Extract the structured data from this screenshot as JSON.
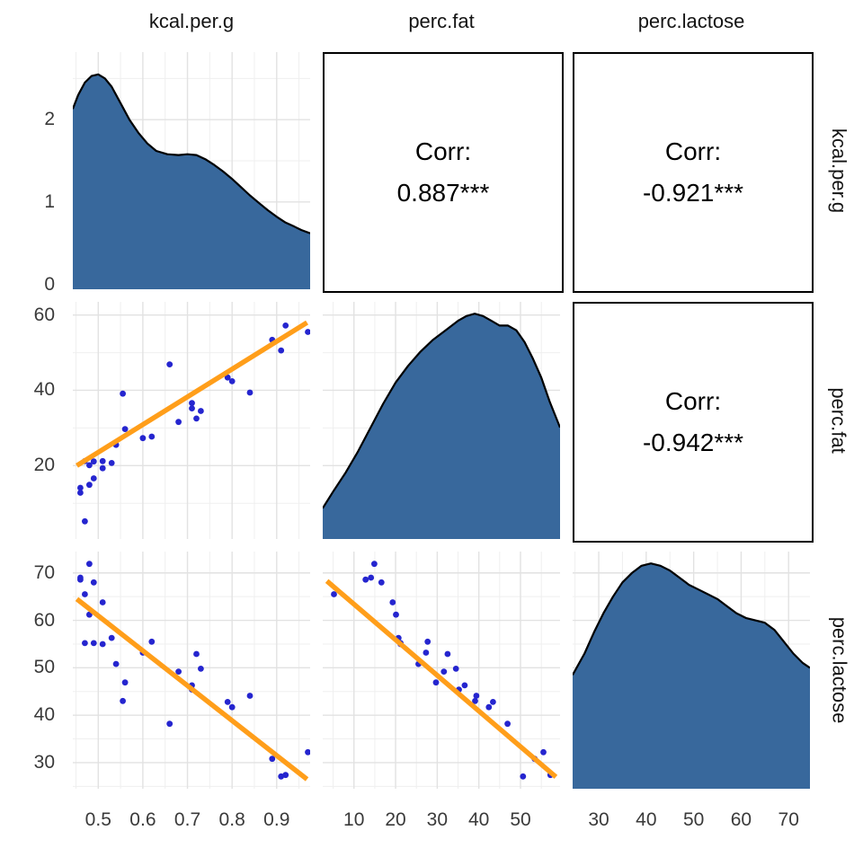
{
  "figure": {
    "kind": "ggpairs scatterplot matrix",
    "background": "#ffffff"
  },
  "style": {
    "density_fill": "#38689c",
    "density_stroke": "#000000",
    "point_color": "#2525cf",
    "regression_color": "#ff9e1a",
    "grid_major": "#e2e2e2",
    "grid_minor": "#efefef",
    "panel_border": "#000000",
    "tick_color": "#3a3a3a",
    "label_color": "#141414"
  },
  "chart_data": {
    "type": "scatter",
    "subtype": "pairs-matrix",
    "title": "",
    "variables": [
      "kcal.per.g",
      "perc.fat",
      "perc.lactose"
    ],
    "corr": {
      "c01": {
        "label": "Corr:",
        "value": "0.887***"
      },
      "c02": {
        "label": "Corr:",
        "value": "-0.921***"
      },
      "c12": {
        "label": "Corr:",
        "value": "-0.942***"
      }
    },
    "x_axes": [
      {
        "var": "kcal.per.g",
        "range": [
          0.443,
          0.975
        ],
        "ticks": [
          0.5,
          0.6,
          0.7,
          0.8,
          0.9
        ],
        "minor": [
          0.45,
          0.55,
          0.65,
          0.75,
          0.85,
          0.95
        ]
      },
      {
        "var": "perc.fat",
        "range": [
          2.5,
          59.5
        ],
        "ticks": [
          10,
          20,
          30,
          40,
          50
        ],
        "minor": [
          5,
          15,
          25,
          35,
          45,
          55
        ]
      },
      {
        "var": "perc.lactose",
        "range": [
          24.5,
          74.5
        ],
        "ticks": [
          30,
          40,
          50,
          60,
          70
        ],
        "minor": [
          25,
          35,
          45,
          55,
          65
        ]
      }
    ],
    "y_axes": [
      {
        "var": "density",
        "range": [
          -0.06,
          2.82
        ],
        "ticks": [
          0,
          1,
          2
        ],
        "minor": [
          0.5,
          1.5,
          2.5
        ]
      },
      {
        "var": "perc.fat",
        "range": [
          0.5,
          63.5
        ],
        "ticks": [
          20,
          40,
          60
        ],
        "minor": [
          10,
          30,
          50
        ]
      },
      {
        "var": "perc.lactose",
        "range": [
          24.5,
          74.5
        ],
        "ticks": [
          30,
          40,
          50,
          60,
          70
        ],
        "minor": [
          25,
          35,
          45,
          55,
          65
        ]
      }
    ],
    "observations": [
      [
        0.49,
        16.6,
        68.0
      ],
      [
        0.51,
        19.3,
        63.8
      ],
      [
        0.46,
        14.1,
        69.0
      ],
      [
        0.48,
        14.9,
        71.9
      ],
      [
        0.6,
        27.3,
        53.2
      ],
      [
        0.47,
        21.2,
        55.2
      ],
      [
        0.56,
        29.7,
        46.9
      ],
      [
        0.89,
        53.4,
        30.8
      ],
      [
        0.91,
        50.6,
        27.1
      ],
      [
        0.92,
        57.2,
        27.4
      ],
      [
        0.8,
        42.4,
        41.7
      ],
      [
        0.46,
        12.8,
        68.6
      ],
      [
        0.71,
        36.6,
        46.3
      ],
      [
        0.71,
        35.2,
        45.4
      ],
      [
        0.73,
        34.5,
        49.8
      ],
      [
        0.68,
        31.6,
        49.2
      ],
      [
        0.72,
        32.5,
        52.9
      ],
      [
        0.97,
        55.5,
        32.2
      ],
      [
        0.79,
        43.4,
        42.8
      ],
      [
        0.84,
        39.4,
        44.1
      ],
      [
        0.48,
        20.1,
        61.2
      ],
      [
        0.62,
        27.7,
        55.5
      ],
      [
        0.51,
        21.2,
        55.0
      ],
      [
        0.54,
        25.5,
        50.8
      ],
      [
        0.49,
        21.1,
        55.2
      ],
      [
        0.53,
        20.7,
        56.3
      ],
      [
        0.47,
        5.2,
        65.5
      ],
      [
        0.555,
        39.1,
        43.0
      ],
      [
        0.66,
        46.9,
        38.2
      ]
    ],
    "regressions": {
      "kcal_fat": [
        [
          0.452,
          20.0
        ],
        [
          0.968,
          58.0
        ]
      ],
      "kcal_lactose": [
        [
          0.452,
          64.5
        ],
        [
          0.968,
          26.5
        ]
      ],
      "fat_lactose": [
        [
          3.5,
          68.3
        ],
        [
          58.5,
          27.0
        ]
      ]
    },
    "densities": {
      "kcal.per.g": {
        "y_scale": "axis",
        "points": [
          [
            0.443,
            2.13
          ],
          [
            0.455,
            2.3
          ],
          [
            0.47,
            2.45
          ],
          [
            0.485,
            2.53
          ],
          [
            0.5,
            2.55
          ],
          [
            0.515,
            2.5
          ],
          [
            0.53,
            2.4
          ],
          [
            0.55,
            2.2
          ],
          [
            0.57,
            2.0
          ],
          [
            0.59,
            1.84
          ],
          [
            0.61,
            1.71
          ],
          [
            0.63,
            1.62
          ],
          [
            0.655,
            1.58
          ],
          [
            0.68,
            1.57
          ],
          [
            0.7,
            1.58
          ],
          [
            0.72,
            1.57
          ],
          [
            0.74,
            1.52
          ],
          [
            0.76,
            1.45
          ],
          [
            0.78,
            1.37
          ],
          [
            0.8,
            1.28
          ],
          [
            0.82,
            1.18
          ],
          [
            0.84,
            1.08
          ],
          [
            0.86,
            0.99
          ],
          [
            0.88,
            0.9
          ],
          [
            0.9,
            0.82
          ],
          [
            0.92,
            0.75
          ],
          [
            0.94,
            0.7
          ],
          [
            0.955,
            0.66
          ],
          [
            0.975,
            0.62
          ]
        ]
      },
      "perc.fat": {
        "y_scale": "fraction",
        "points": [
          [
            2.5,
            0.13
          ],
          [
            5,
            0.2
          ],
          [
            8,
            0.28
          ],
          [
            11,
            0.37
          ],
          [
            14,
            0.47
          ],
          [
            17,
            0.57
          ],
          [
            20,
            0.66
          ],
          [
            23,
            0.73
          ],
          [
            26,
            0.79
          ],
          [
            29,
            0.84
          ],
          [
            32,
            0.88
          ],
          [
            35,
            0.92
          ],
          [
            37,
            0.94
          ],
          [
            39,
            0.95
          ],
          [
            41,
            0.94
          ],
          [
            43,
            0.92
          ],
          [
            45,
            0.9
          ],
          [
            47,
            0.9
          ],
          [
            49,
            0.88
          ],
          [
            51,
            0.83
          ],
          [
            53,
            0.76
          ],
          [
            55,
            0.68
          ],
          [
            57,
            0.58
          ],
          [
            59.5,
            0.47
          ]
        ]
      },
      "perc.lactose": {
        "y_scale": "fraction",
        "points": [
          [
            24.5,
            0.48
          ],
          [
            27,
            0.57
          ],
          [
            29,
            0.66
          ],
          [
            31,
            0.74
          ],
          [
            33,
            0.81
          ],
          [
            35,
            0.87
          ],
          [
            37,
            0.91
          ],
          [
            39,
            0.94
          ],
          [
            41,
            0.95
          ],
          [
            43,
            0.94
          ],
          [
            45,
            0.92
          ],
          [
            47,
            0.89
          ],
          [
            49,
            0.86
          ],
          [
            51,
            0.84
          ],
          [
            53,
            0.82
          ],
          [
            55,
            0.8
          ],
          [
            57,
            0.77
          ],
          [
            59,
            0.74
          ],
          [
            61,
            0.72
          ],
          [
            63,
            0.71
          ],
          [
            65,
            0.7
          ],
          [
            67,
            0.67
          ],
          [
            69,
            0.62
          ],
          [
            71,
            0.57
          ],
          [
            73,
            0.53
          ],
          [
            74.5,
            0.51
          ]
        ]
      }
    },
    "panels": [
      [
        {
          "type": "density",
          "var": "kcal.per.g"
        },
        {
          "type": "corr",
          "key": "c01"
        },
        {
          "type": "corr",
          "key": "c02"
        }
      ],
      [
        {
          "type": "scatter",
          "xi": 0,
          "yi": 1,
          "reg": "kcal_fat"
        },
        {
          "type": "density",
          "var": "perc.fat"
        },
        {
          "type": "corr",
          "key": "c12"
        }
      ],
      [
        {
          "type": "scatter",
          "xi": 0,
          "yi": 2,
          "reg": "kcal_lactose"
        },
        {
          "type": "scatter",
          "xi": 1,
          "yi": 2,
          "reg": "fat_lactose"
        },
        {
          "type": "density",
          "var": "perc.lactose"
        }
      ]
    ],
    "legend": null,
    "grid": "on"
  }
}
